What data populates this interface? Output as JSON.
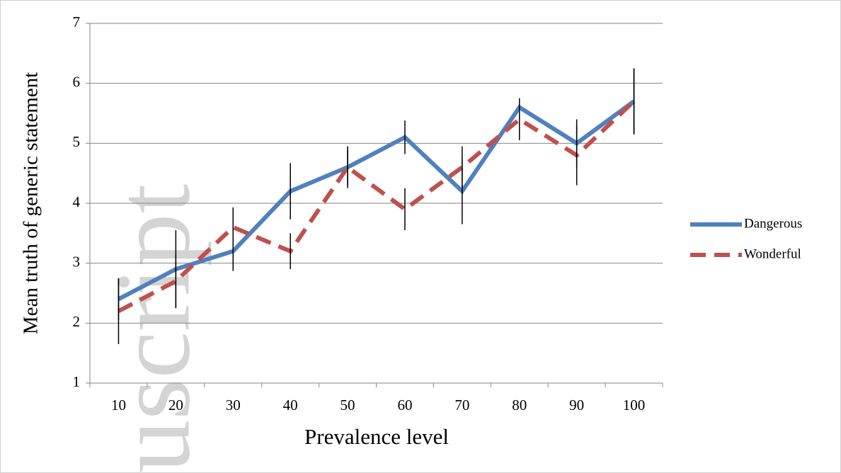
{
  "chart_data": {
    "type": "line",
    "watermark": "uscript",
    "x_label": "Prevalence level",
    "y_label": "Mean truth of generic statement",
    "categories": [
      "10",
      "20",
      "30",
      "40",
      "50",
      "60",
      "70",
      "80",
      "90",
      "100"
    ],
    "series": [
      {
        "name": "Dangerous",
        "color": "#4f81bd",
        "line_style": "solid",
        "values": [
          2.4,
          2.9,
          3.2,
          4.2,
          4.6,
          5.1,
          4.2,
          5.6,
          5.0,
          5.7
        ],
        "errors": [
          0.35,
          0.65,
          0.33,
          0.47,
          0.3,
          0.28,
          0.55,
          0.15,
          0.4,
          0.55
        ]
      },
      {
        "name": "Wonderful",
        "color": "#c0504d",
        "line_style": "dashed",
        "values": [
          2.2,
          2.7,
          3.6,
          3.2,
          4.6,
          3.9,
          4.6,
          5.4,
          4.8,
          5.7
        ],
        "errors": [
          0.55,
          0.45,
          0.33,
          0.3,
          0.35,
          0.35,
          0.35,
          0.35,
          0.5,
          0.55
        ]
      }
    ],
    "ylim": [
      1,
      7
    ],
    "yticks": [
      1,
      2,
      3,
      4,
      5,
      6,
      7
    ],
    "grid": true,
    "legend": "right"
  }
}
